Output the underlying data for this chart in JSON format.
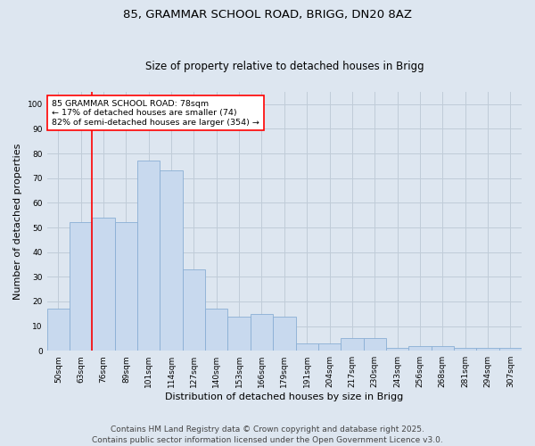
{
  "title_line1": "85, GRAMMAR SCHOOL ROAD, BRIGG, DN20 8AZ",
  "title_line2": "Size of property relative to detached houses in Brigg",
  "xlabel": "Distribution of detached houses by size in Brigg",
  "ylabel": "Number of detached properties",
  "categories": [
    "50sqm",
    "63sqm",
    "76sqm",
    "89sqm",
    "101sqm",
    "114sqm",
    "127sqm",
    "140sqm",
    "153sqm",
    "166sqm",
    "179sqm",
    "191sqm",
    "204sqm",
    "217sqm",
    "230sqm",
    "243sqm",
    "256sqm",
    "268sqm",
    "281sqm",
    "294sqm",
    "307sqm"
  ],
  "values": [
    17,
    52,
    54,
    52,
    77,
    73,
    33,
    17,
    14,
    15,
    14,
    3,
    3,
    5,
    5,
    1,
    2,
    2,
    1,
    1,
    1
  ],
  "bar_color": "#c8d9ee",
  "bar_edge_color": "#8aafd4",
  "bar_linewidth": 0.6,
  "grid_color": "#c0ccd8",
  "background_color": "#dde6f0",
  "annotation_box_text": "85 GRAMMAR SCHOOL ROAD: 78sqm\n← 17% of detached houses are smaller (74)\n82% of semi-detached houses are larger (354) →",
  "annotation_box_color": "white",
  "annotation_box_edge_color": "red",
  "vline_color": "red",
  "vline_linewidth": 1.2,
  "vline_x_index": 1.5,
  "ylim": [
    0,
    105
  ],
  "yticks": [
    0,
    10,
    20,
    30,
    40,
    50,
    60,
    70,
    80,
    90,
    100
  ],
  "footnote_line1": "Contains HM Land Registry data © Crown copyright and database right 2025.",
  "footnote_line2": "Contains public sector information licensed under the Open Government Licence v3.0.",
  "title_fontsize": 9.5,
  "subtitle_fontsize": 8.5,
  "axis_label_fontsize": 8,
  "tick_fontsize": 6.5,
  "annotation_fontsize": 6.8,
  "footnote_fontsize": 6.5
}
